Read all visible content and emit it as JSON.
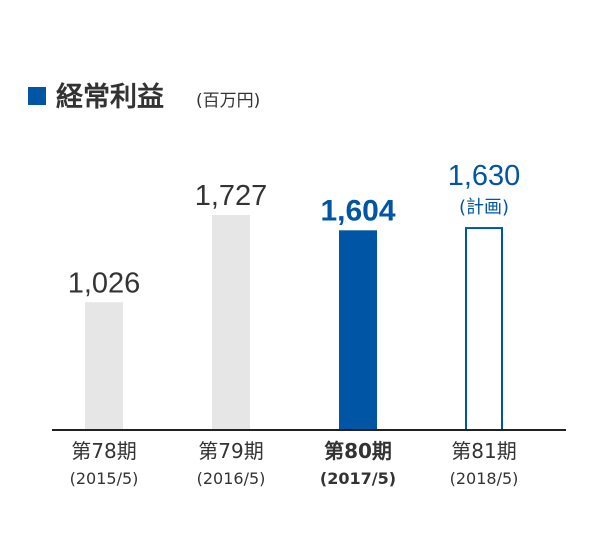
{
  "chart_data": {
    "type": "bar",
    "title": "経常利益",
    "unit": "(百万円)",
    "categories": [
      "第78期",
      "第79期",
      "第80期",
      "第81期"
    ],
    "periods": [
      "(2015/5)",
      "(2016/5)",
      "(2017/5)",
      "(2018/5)"
    ],
    "values": [
      1026,
      1727,
      1604,
      1630
    ],
    "value_labels": [
      "1,026",
      "1,727",
      "1,604",
      "1,630"
    ],
    "notes": [
      "",
      "",
      "",
      "(計画)"
    ],
    "bar_styles": [
      "past",
      "past",
      "current",
      "plan"
    ],
    "colors": {
      "past": "#e6e6e6",
      "current": "#0055a5",
      "plan": "#0055a5",
      "text": "#333333",
      "axis": "#222222"
    },
    "ylim": [
      0,
      1727
    ]
  }
}
